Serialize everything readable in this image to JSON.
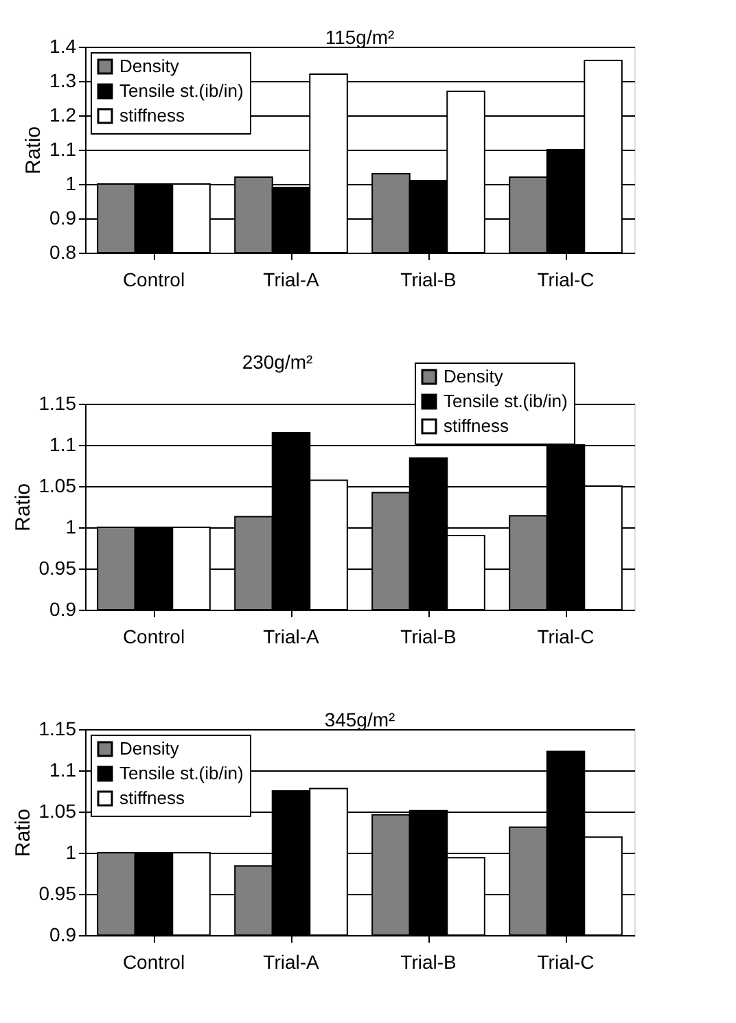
{
  "chart_data": [
    {
      "type": "bar",
      "title": "115g/m²",
      "ylabel": "Ratio",
      "categories": [
        "Control",
        "Trial-A",
        "Trial-B",
        "Trial-C"
      ],
      "ylim": [
        0.8,
        1.4
      ],
      "yticks": [
        0.8,
        0.9,
        1,
        1.1,
        1.2,
        1.3,
        1.4
      ],
      "grid": "y",
      "legend": "top left",
      "series": [
        {
          "name": "Density",
          "color": "#808080",
          "values": [
            1.0,
            1.02,
            1.03,
            1.02
          ]
        },
        {
          "name": "Tensile st.(ib/in)",
          "color": "#000000",
          "values": [
            1.0,
            0.99,
            1.01,
            1.1
          ]
        },
        {
          "name": "stiffness",
          "color": "#ffffff",
          "values": [
            1.0,
            1.32,
            1.27,
            1.36
          ]
        }
      ]
    },
    {
      "type": "bar",
      "title": "230g/m²",
      "ylabel": "Ratio",
      "categories": [
        "Control",
        "Trial-A",
        "Trial-B",
        "Trial-C"
      ],
      "ylim": [
        0.9,
        1.15
      ],
      "yticks": [
        0.9,
        0.95,
        1,
        1.05,
        1.1,
        1.15
      ],
      "grid": "y",
      "legend": "top right",
      "series": [
        {
          "name": "Density",
          "color": "#808080",
          "values": [
            1.0,
            1.013,
            1.042,
            1.014
          ]
        },
        {
          "name": "Tensile st.(ib/in)",
          "color": "#000000",
          "values": [
            1.0,
            1.115,
            1.084,
            1.1
          ]
        },
        {
          "name": "stiffness",
          "color": "#ffffff",
          "values": [
            1.0,
            1.057,
            0.99,
            1.05
          ]
        }
      ]
    },
    {
      "type": "bar",
      "title": "345g/m²",
      "ylabel": "Ratio",
      "categories": [
        "Control",
        "Trial-A",
        "Trial-B",
        "Trial-C"
      ],
      "ylim": [
        0.9,
        1.15
      ],
      "yticks": [
        0.9,
        0.95,
        1,
        1.05,
        1.1,
        1.15
      ],
      "grid": "y",
      "legend": "top left",
      "series": [
        {
          "name": "Density",
          "color": "#808080",
          "values": [
            1.0,
            0.984,
            1.046,
            1.031
          ]
        },
        {
          "name": "Tensile st.(ib/in)",
          "color": "#000000",
          "values": [
            1.0,
            1.075,
            1.051,
            1.123
          ]
        },
        {
          "name": "stiffness",
          "color": "#ffffff",
          "values": [
            1.0,
            1.078,
            0.994,
            1.019
          ]
        }
      ]
    }
  ]
}
